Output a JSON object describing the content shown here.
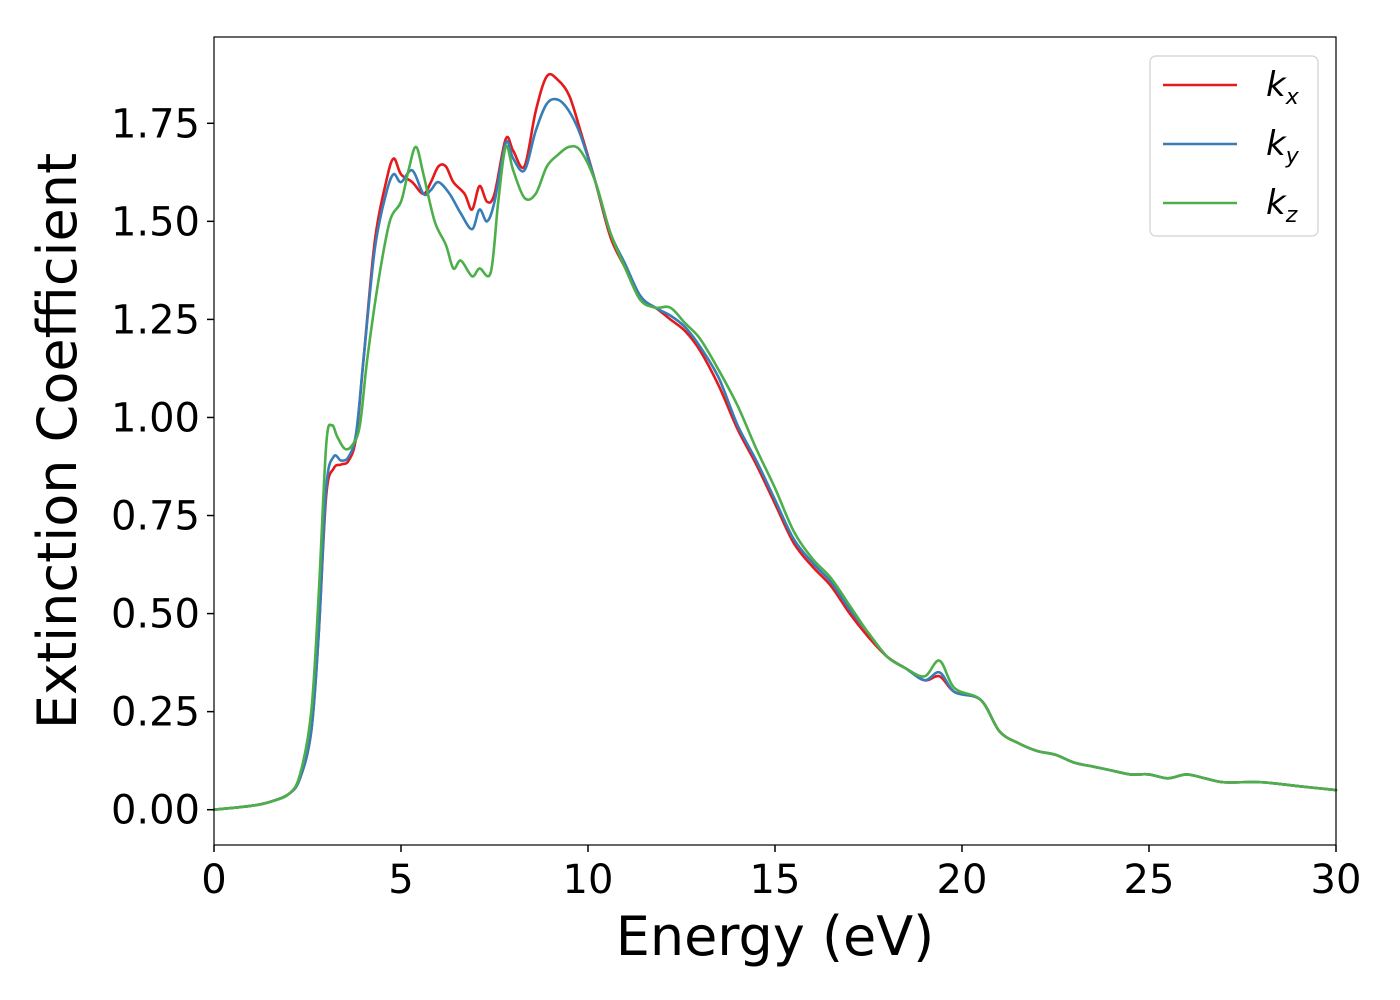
{
  "chart_data": {
    "type": "line",
    "title": "",
    "xlabel": "Energy (eV)",
    "ylabel": "Extinction Coefficient",
    "xlim": [
      0,
      30
    ],
    "ylim": [
      -0.09,
      1.97
    ],
    "xticks": [
      "0",
      "5",
      "10",
      "15",
      "20",
      "25",
      "30"
    ],
    "yticks": [
      "0.00",
      "0.25",
      "0.50",
      "0.75",
      "1.00",
      "1.25",
      "1.50",
      "1.75"
    ],
    "grid": false,
    "legend_position": "top-right",
    "series": [
      {
        "name": "k",
        "subscript": "x",
        "color": "#e41a1c",
        "points": [
          [
            0,
            0
          ],
          [
            1,
            0.01
          ],
          [
            1.5,
            0.02
          ],
          [
            2,
            0.04
          ],
          [
            2.3,
            0.08
          ],
          [
            2.6,
            0.2
          ],
          [
            2.8,
            0.45
          ],
          [
            3,
            0.8
          ],
          [
            3.2,
            0.87
          ],
          [
            3.4,
            0.88
          ],
          [
            3.6,
            0.89
          ],
          [
            3.8,
            0.95
          ],
          [
            4,
            1.15
          ],
          [
            4.3,
            1.45
          ],
          [
            4.6,
            1.6
          ],
          [
            4.8,
            1.66
          ],
          [
            5,
            1.62
          ],
          [
            5.3,
            1.6
          ],
          [
            5.6,
            1.57
          ],
          [
            5.8,
            1.6
          ],
          [
            6,
            1.64
          ],
          [
            6.2,
            1.64
          ],
          [
            6.4,
            1.6
          ],
          [
            6.7,
            1.57
          ],
          [
            6.9,
            1.53
          ],
          [
            7.1,
            1.59
          ],
          [
            7.3,
            1.55
          ],
          [
            7.5,
            1.57
          ],
          [
            7.8,
            1.71
          ],
          [
            8,
            1.68
          ],
          [
            8.3,
            1.64
          ],
          [
            8.6,
            1.78
          ],
          [
            8.9,
            1.87
          ],
          [
            9.2,
            1.86
          ],
          [
            9.5,
            1.82
          ],
          [
            9.8,
            1.73
          ],
          [
            10.2,
            1.6
          ],
          [
            10.6,
            1.46
          ],
          [
            11,
            1.38
          ],
          [
            11.4,
            1.3
          ],
          [
            11.8,
            1.28
          ],
          [
            12.2,
            1.25
          ],
          [
            12.6,
            1.22
          ],
          [
            13,
            1.17
          ],
          [
            13.5,
            1.08
          ],
          [
            14,
            0.97
          ],
          [
            14.5,
            0.88
          ],
          [
            15,
            0.78
          ],
          [
            15.5,
            0.68
          ],
          [
            16,
            0.62
          ],
          [
            16.5,
            0.57
          ],
          [
            17,
            0.5
          ],
          [
            17.5,
            0.44
          ],
          [
            18,
            0.39
          ],
          [
            18.5,
            0.36
          ],
          [
            19,
            0.33
          ],
          [
            19.4,
            0.34
          ],
          [
            19.8,
            0.3
          ],
          [
            20.5,
            0.28
          ],
          [
            21,
            0.2
          ],
          [
            21.5,
            0.17
          ],
          [
            22,
            0.15
          ],
          [
            22.5,
            0.14
          ],
          [
            23,
            0.12
          ],
          [
            23.5,
            0.11
          ],
          [
            24,
            0.1
          ],
          [
            24.5,
            0.09
          ],
          [
            25,
            0.09
          ],
          [
            25.5,
            0.08
          ],
          [
            26,
            0.09
          ],
          [
            26.5,
            0.08
          ],
          [
            27,
            0.07
          ],
          [
            28,
            0.07
          ],
          [
            29,
            0.06
          ],
          [
            30,
            0.05
          ]
        ]
      },
      {
        "name": "k",
        "subscript": "y",
        "color": "#377eb8",
        "points": [
          [
            0,
            0
          ],
          [
            1,
            0.01
          ],
          [
            1.5,
            0.02
          ],
          [
            2,
            0.04
          ],
          [
            2.3,
            0.08
          ],
          [
            2.6,
            0.2
          ],
          [
            2.8,
            0.45
          ],
          [
            3,
            0.82
          ],
          [
            3.2,
            0.9
          ],
          [
            3.4,
            0.89
          ],
          [
            3.6,
            0.9
          ],
          [
            3.8,
            0.96
          ],
          [
            4,
            1.15
          ],
          [
            4.3,
            1.43
          ],
          [
            4.6,
            1.57
          ],
          [
            4.8,
            1.62
          ],
          [
            5,
            1.6
          ],
          [
            5.3,
            1.63
          ],
          [
            5.6,
            1.57
          ],
          [
            5.8,
            1.58
          ],
          [
            6,
            1.6
          ],
          [
            6.3,
            1.57
          ],
          [
            6.6,
            1.52
          ],
          [
            6.9,
            1.48
          ],
          [
            7.1,
            1.53
          ],
          [
            7.3,
            1.5
          ],
          [
            7.5,
            1.55
          ],
          [
            7.8,
            1.7
          ],
          [
            8,
            1.66
          ],
          [
            8.3,
            1.63
          ],
          [
            8.6,
            1.73
          ],
          [
            8.9,
            1.8
          ],
          [
            9.2,
            1.81
          ],
          [
            9.5,
            1.78
          ],
          [
            9.8,
            1.72
          ],
          [
            10.2,
            1.6
          ],
          [
            10.6,
            1.47
          ],
          [
            11,
            1.39
          ],
          [
            11.4,
            1.31
          ],
          [
            11.8,
            1.28
          ],
          [
            12.2,
            1.26
          ],
          [
            12.6,
            1.23
          ],
          [
            13,
            1.18
          ],
          [
            13.5,
            1.1
          ],
          [
            14,
            0.98
          ],
          [
            14.5,
            0.89
          ],
          [
            15,
            0.79
          ],
          [
            15.5,
            0.69
          ],
          [
            16,
            0.63
          ],
          [
            16.5,
            0.58
          ],
          [
            17,
            0.51
          ],
          [
            17.5,
            0.45
          ],
          [
            18,
            0.39
          ],
          [
            18.5,
            0.36
          ],
          [
            19,
            0.33
          ],
          [
            19.4,
            0.35
          ],
          [
            19.8,
            0.3
          ],
          [
            20.5,
            0.28
          ],
          [
            21,
            0.2
          ],
          [
            21.5,
            0.17
          ],
          [
            22,
            0.15
          ],
          [
            22.5,
            0.14
          ],
          [
            23,
            0.12
          ],
          [
            23.5,
            0.11
          ],
          [
            24,
            0.1
          ],
          [
            24.5,
            0.09
          ],
          [
            25,
            0.09
          ],
          [
            25.5,
            0.08
          ],
          [
            26,
            0.09
          ],
          [
            26.5,
            0.08
          ],
          [
            27,
            0.07
          ],
          [
            28,
            0.07
          ],
          [
            29,
            0.06
          ],
          [
            30,
            0.05
          ]
        ]
      },
      {
        "name": "k",
        "subscript": "z",
        "color": "#4daf4a",
        "points": [
          [
            0,
            0
          ],
          [
            1,
            0.01
          ],
          [
            1.5,
            0.02
          ],
          [
            2,
            0.04
          ],
          [
            2.3,
            0.09
          ],
          [
            2.6,
            0.25
          ],
          [
            2.8,
            0.55
          ],
          [
            3,
            0.93
          ],
          [
            3.15,
            0.98
          ],
          [
            3.3,
            0.95
          ],
          [
            3.5,
            0.92
          ],
          [
            3.7,
            0.93
          ],
          [
            3.9,
            0.98
          ],
          [
            4.1,
            1.15
          ],
          [
            4.4,
            1.35
          ],
          [
            4.7,
            1.5
          ],
          [
            5,
            1.55
          ],
          [
            5.2,
            1.63
          ],
          [
            5.4,
            1.69
          ],
          [
            5.6,
            1.62
          ],
          [
            5.9,
            1.5
          ],
          [
            6.2,
            1.44
          ],
          [
            6.4,
            1.38
          ],
          [
            6.6,
            1.4
          ],
          [
            6.9,
            1.36
          ],
          [
            7.1,
            1.38
          ],
          [
            7.4,
            1.37
          ],
          [
            7.6,
            1.55
          ],
          [
            7.8,
            1.69
          ],
          [
            8,
            1.63
          ],
          [
            8.3,
            1.56
          ],
          [
            8.6,
            1.57
          ],
          [
            8.9,
            1.64
          ],
          [
            9.2,
            1.67
          ],
          [
            9.5,
            1.69
          ],
          [
            9.8,
            1.68
          ],
          [
            10.2,
            1.6
          ],
          [
            10.6,
            1.47
          ],
          [
            11,
            1.38
          ],
          [
            11.4,
            1.3
          ],
          [
            11.8,
            1.28
          ],
          [
            12.2,
            1.28
          ],
          [
            12.6,
            1.24
          ],
          [
            13,
            1.2
          ],
          [
            13.5,
            1.12
          ],
          [
            14,
            1.03
          ],
          [
            14.5,
            0.92
          ],
          [
            15,
            0.82
          ],
          [
            15.5,
            0.71
          ],
          [
            16,
            0.64
          ],
          [
            16.5,
            0.59
          ],
          [
            17,
            0.52
          ],
          [
            17.5,
            0.45
          ],
          [
            18,
            0.39
          ],
          [
            18.5,
            0.36
          ],
          [
            19,
            0.34
          ],
          [
            19.4,
            0.38
          ],
          [
            19.8,
            0.31
          ],
          [
            20.5,
            0.28
          ],
          [
            21,
            0.2
          ],
          [
            21.5,
            0.17
          ],
          [
            22,
            0.15
          ],
          [
            22.5,
            0.14
          ],
          [
            23,
            0.12
          ],
          [
            23.5,
            0.11
          ],
          [
            24,
            0.1
          ],
          [
            24.5,
            0.09
          ],
          [
            25,
            0.09
          ],
          [
            25.5,
            0.08
          ],
          [
            26,
            0.09
          ],
          [
            26.5,
            0.08
          ],
          [
            27,
            0.07
          ],
          [
            28,
            0.07
          ],
          [
            29,
            0.06
          ],
          [
            30,
            0.05
          ]
        ]
      }
    ]
  }
}
